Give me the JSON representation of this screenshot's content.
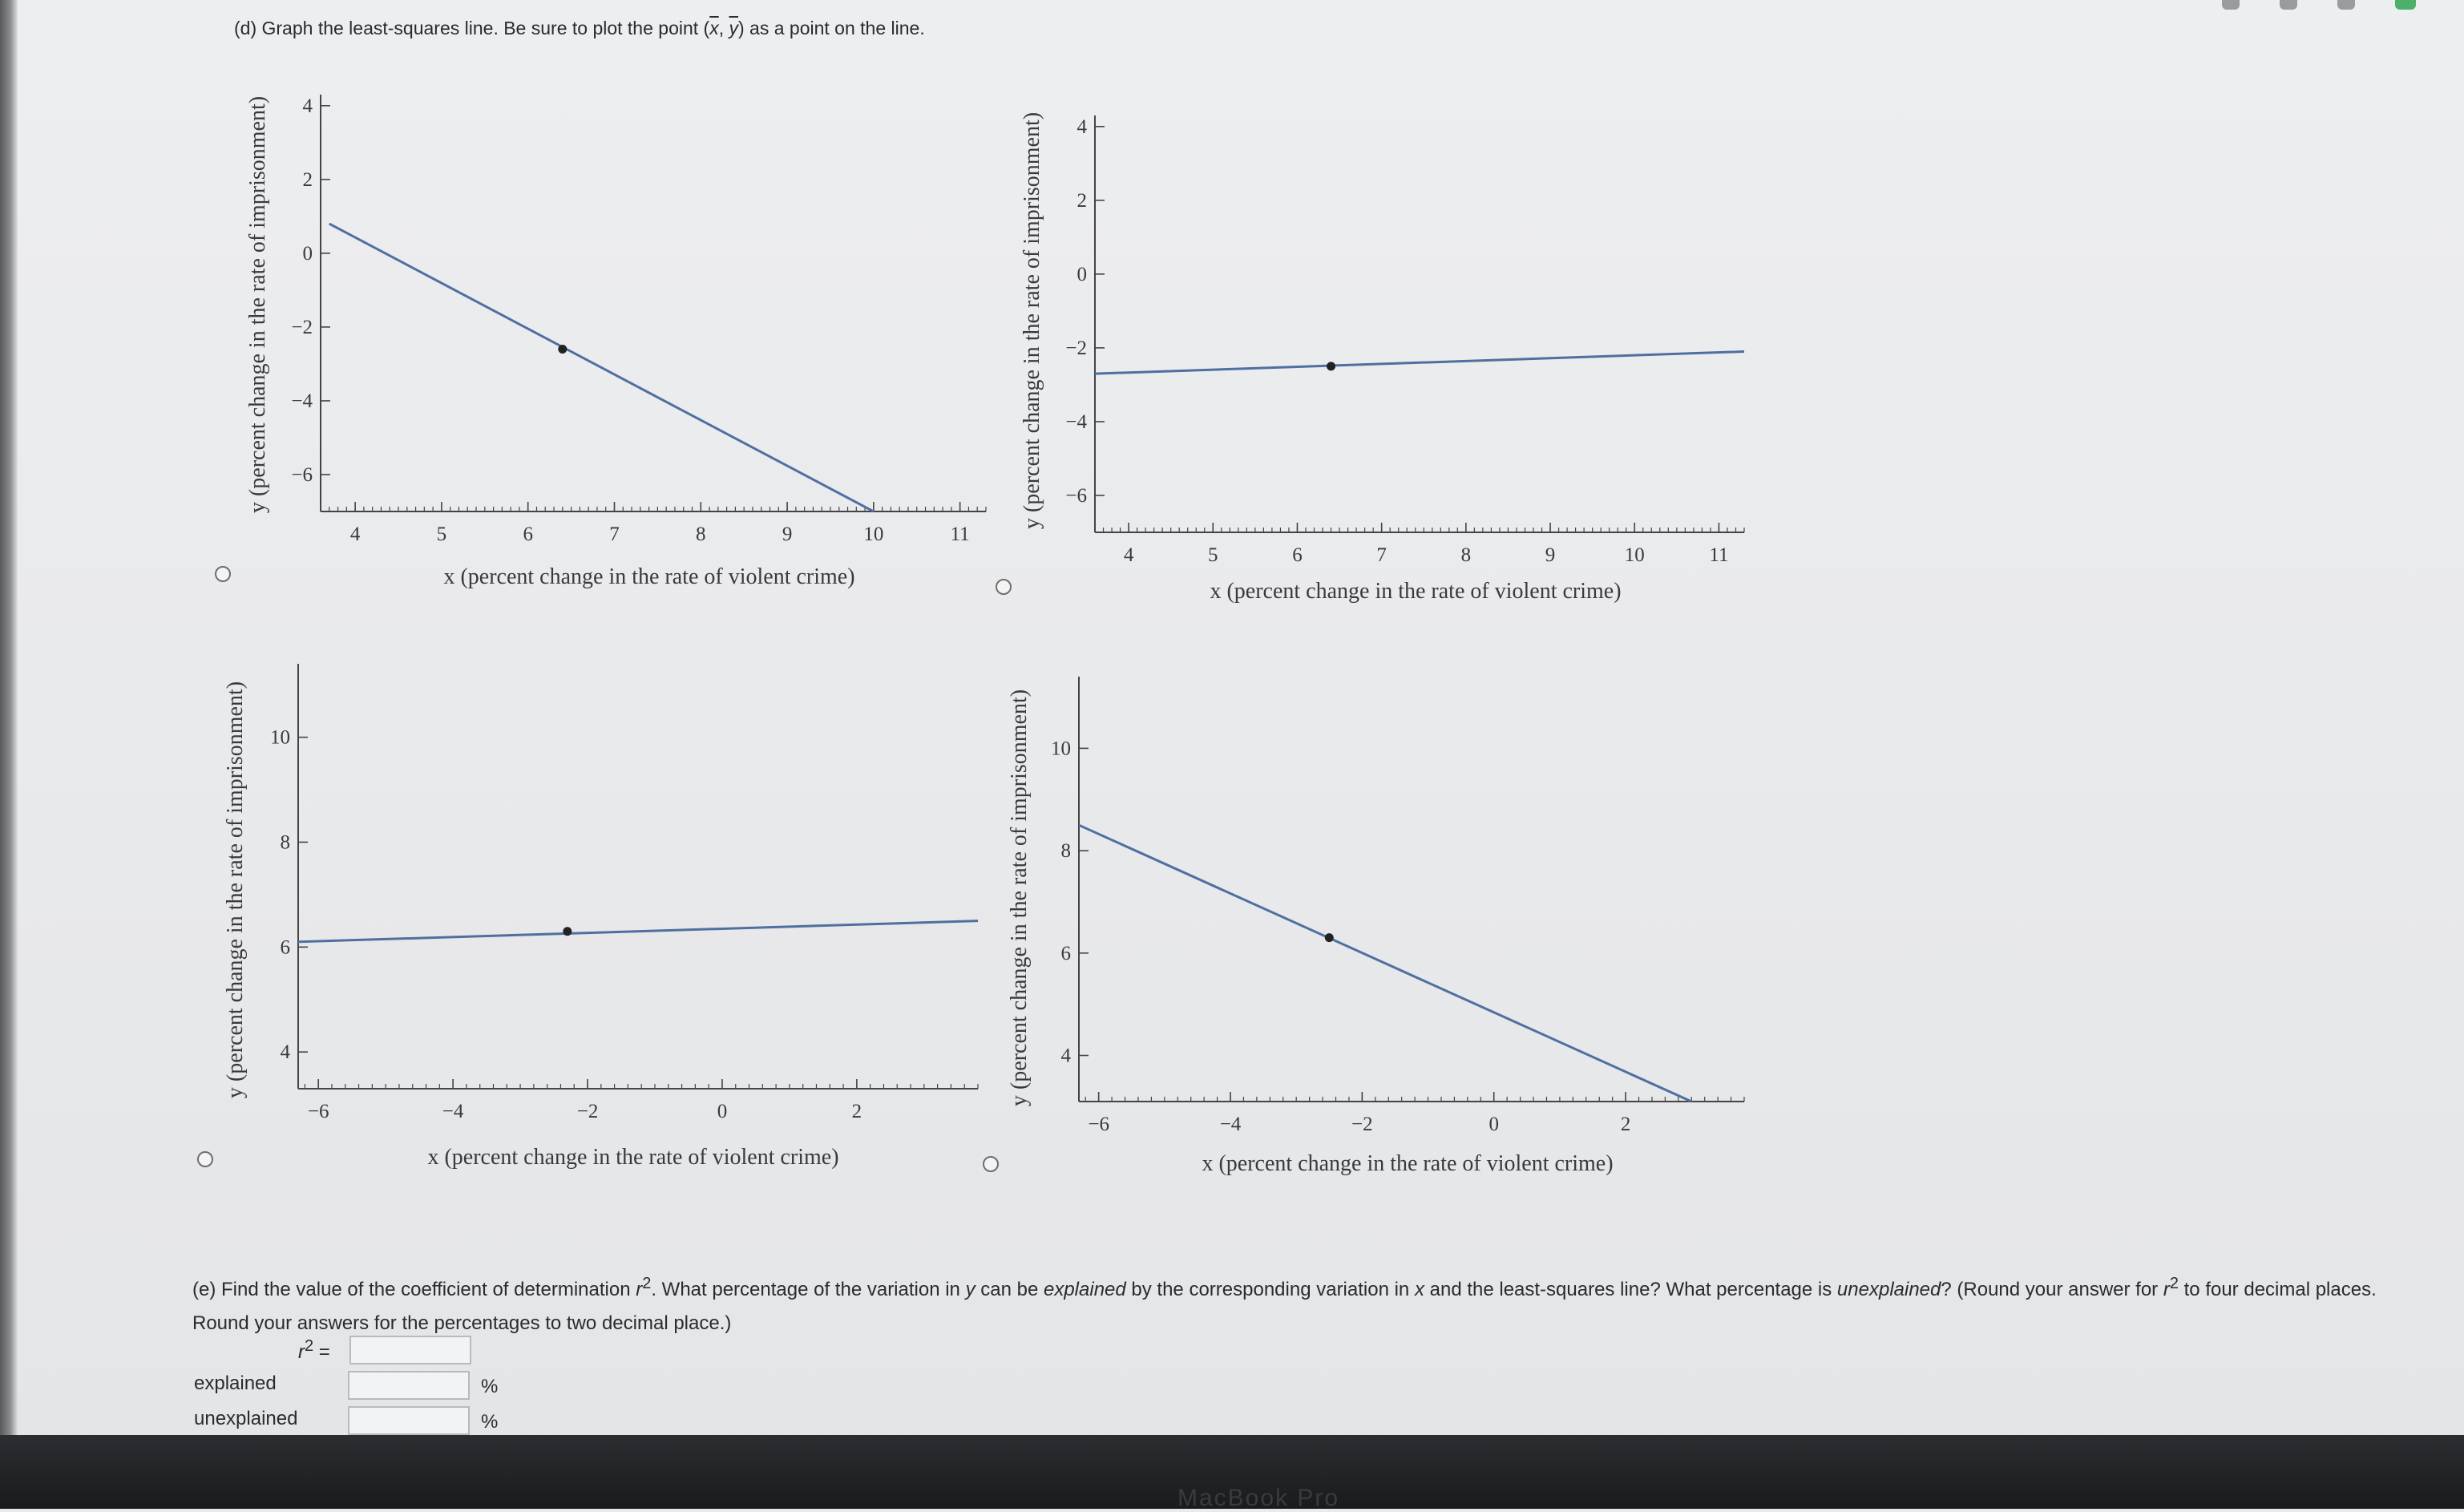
{
  "question_d": {
    "prefix": "(d) Graph the least-squares line. Be sure to plot the point (",
    "x_bar": "x",
    "sep": ", ",
    "y_bar": "y",
    "suffix": ") as a point on the line."
  },
  "axis_titles": {
    "x": "x (percent change in the rate of violent crime)",
    "y": "y (percent change in the rate of imprisonment)"
  },
  "chart_data": [
    {
      "type": "line",
      "option": "top-left",
      "x_ticks": [
        "4",
        "5",
        "6",
        "7",
        "8",
        "9",
        "10",
        "11"
      ],
      "y_ticks": [
        "4",
        "2",
        "0",
        "−2",
        "−4",
        "−6"
      ],
      "xlim": [
        3.6,
        11.3
      ],
      "ylim": [
        -7.0,
        4.3
      ],
      "line": [
        [
          3.7,
          0.8
        ],
        [
          10.0,
          -7.0
        ]
      ],
      "point": [
        6.4,
        -2.6
      ],
      "xlabel": "x (percent change in the rate of violent crime)",
      "ylabel": "y (percent change in the rate of imprisonment)"
    },
    {
      "type": "line",
      "option": "top-right",
      "x_ticks": [
        "4",
        "5",
        "6",
        "7",
        "8",
        "9",
        "10",
        "11"
      ],
      "y_ticks": [
        "4",
        "2",
        "0",
        "−2",
        "−4",
        "−6"
      ],
      "xlim": [
        3.6,
        11.3
      ],
      "ylim": [
        -7.0,
        4.3
      ],
      "line": [
        [
          3.6,
          -2.7
        ],
        [
          11.3,
          -2.1
        ]
      ],
      "point": [
        6.4,
        -2.5
      ],
      "xlabel": "x (percent change in the rate of violent crime)",
      "ylabel": "y (percent change in the rate of imprisonment)"
    },
    {
      "type": "line",
      "option": "bottom-left",
      "x_ticks": [
        "−6",
        "−4",
        "−2",
        "0",
        "2"
      ],
      "y_ticks": [
        "10",
        "8",
        "6",
        "4"
      ],
      "xlim": [
        -6.3,
        3.8
      ],
      "ylim": [
        3.3,
        11.4
      ],
      "line": [
        [
          -6.3,
          6.1
        ],
        [
          3.8,
          6.5
        ]
      ],
      "point": [
        -2.3,
        6.3
      ],
      "xlabel": "x (percent change in the rate of violent crime)",
      "ylabel": "y (percent change in the rate of imprisonment)"
    },
    {
      "type": "line",
      "option": "bottom-right",
      "x_ticks": [
        "−6",
        "−4",
        "−2",
        "0",
        "2"
      ],
      "y_ticks": [
        "10",
        "8",
        "6",
        "4"
      ],
      "xlim": [
        -6.3,
        3.8
      ],
      "ylim": [
        3.1,
        11.4
      ],
      "line": [
        [
          -6.3,
          8.5
        ],
        [
          3.0,
          3.1
        ]
      ],
      "point": [
        -2.5,
        6.3
      ],
      "xlabel": "x (percent change in the rate of violent crime)",
      "ylabel": "y (percent change in the rate of imprisonment)"
    }
  ],
  "question_e": {
    "t1": "(e) Find the value of the coefficient of determination ",
    "r": "r",
    "sup": "2",
    "t2": ". What percentage of the variation in ",
    "y": "y",
    "t3": " can be ",
    "explained": "explained",
    "t4": " by the corresponding variation in ",
    "x": "x",
    "t5": " and the least-squares line? What percentage is ",
    "unexplained": "unexplained",
    "t6": "? (Round your answer for ",
    "t7": " to four decimal places. Round your answers for the percentages to two decimal place.)"
  },
  "answers": {
    "r2_label_r": "r",
    "r2_label_sup": "2",
    "r2_label_eq": " =",
    "r2_value": "",
    "explained_label": "explained",
    "explained_value": "",
    "unexplained_label": "unexplained",
    "unexplained_value": "",
    "percent": "%"
  },
  "bezel_text": "MacBook Pro",
  "colors": {
    "line": "#4f6fa0",
    "axis": "#444444",
    "point": "#222222"
  }
}
